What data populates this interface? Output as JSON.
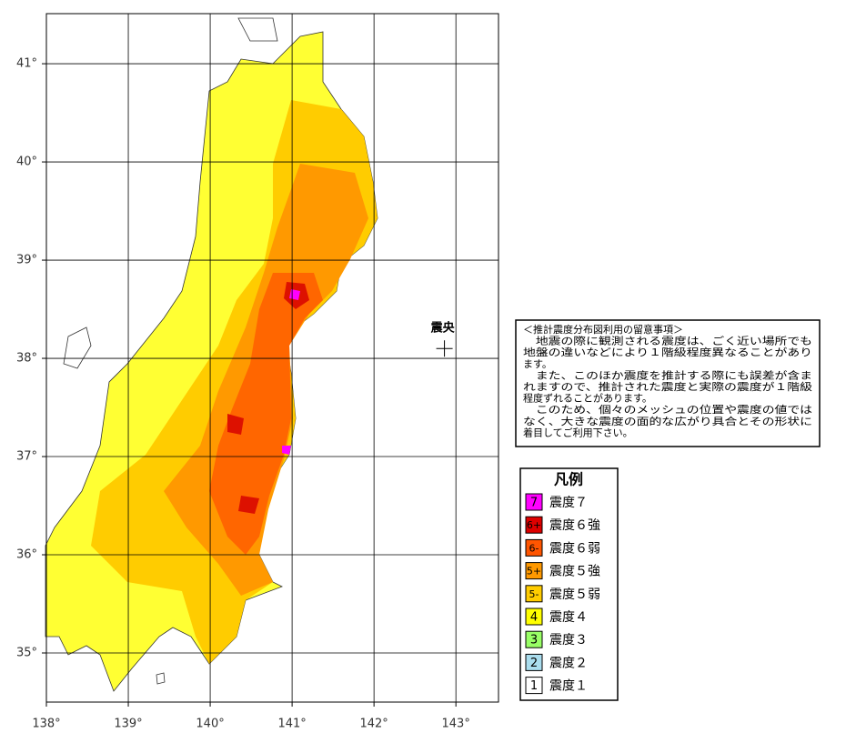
{
  "map": {
    "xlim": [
      138,
      143.52
    ],
    "ylim": [
      34.5,
      41.51
    ],
    "xticks": [
      {
        "value": 138,
        "label": "138°"
      },
      {
        "value": 139,
        "label": "139°"
      },
      {
        "value": 140,
        "label": "140°"
      },
      {
        "value": 141,
        "label": "141°"
      },
      {
        "value": 142,
        "label": "142°"
      },
      {
        "value": 143,
        "label": "143°"
      }
    ],
    "yticks": [
      {
        "value": 35,
        "label": "35°"
      },
      {
        "value": 36,
        "label": "36°"
      },
      {
        "value": 37,
        "label": "37°"
      },
      {
        "value": 38,
        "label": "38°"
      },
      {
        "value": 39,
        "label": "39°"
      },
      {
        "value": 40,
        "label": "40°"
      },
      {
        "value": 41,
        "label": "41°"
      }
    ],
    "grid": true,
    "epicenter": {
      "label": "震央",
      "lon": 142.86,
      "lat": 38.1
    }
  },
  "notice": {
    "lines": [
      "＜推計震度分布図利用の留意事項＞",
      "　地震の際に観測される震度は、ごく近い場所でも",
      "地盤の違いなどにより１階級程度異なることがあり",
      "ます。",
      "　また、このほか震度を推計する際にも誤差が含ま",
      "れますので、推計された震度と実際の震度が１階級",
      "程度ずれることがあります。",
      "　このため、個々のメッシュの位置や震度の値では",
      "なく、大きな震度の面的な広がり具合とその形状に",
      "着目してご利用下さい。"
    ]
  },
  "legend": {
    "title": "凡例",
    "items": [
      {
        "code": "7",
        "label": "震度７",
        "color": "#ff00ff"
      },
      {
        "code": "6+",
        "label": "震度６強",
        "color": "#dd0000"
      },
      {
        "code": "6-",
        "label": "震度６弱",
        "color": "#ff5500"
      },
      {
        "code": "5+",
        "label": "震度５強",
        "color": "#ff9900"
      },
      {
        "code": "5-",
        "label": "震度５弱",
        "color": "#ffcc00"
      },
      {
        "code": "4",
        "label": "震度４",
        "color": "#ffff00"
      },
      {
        "code": "3",
        "label": "震度３",
        "color": "#99ff66"
      },
      {
        "code": "2",
        "label": "震度２",
        "color": "#aaddee"
      },
      {
        "code": "1",
        "label": "震度１",
        "color": "#ffffff"
      }
    ]
  }
}
